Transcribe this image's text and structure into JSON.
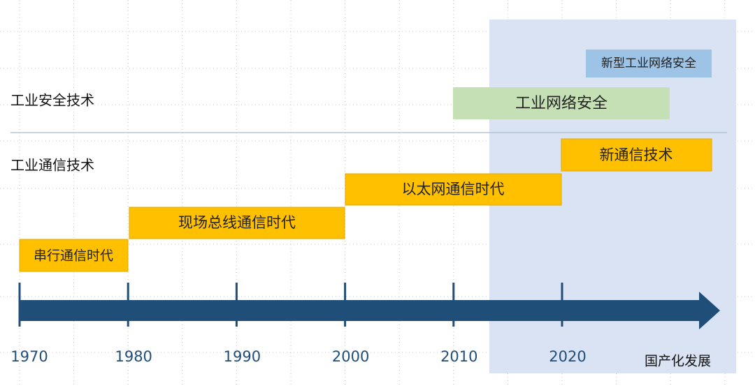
{
  "row_labels": [
    "工业安全技术",
    "工业通信技术"
  ],
  "timeline": {
    "years": [
      "1970",
      "1980",
      "1990",
      "2000",
      "2010",
      "2020"
    ],
    "label": "国产化发展"
  },
  "bars": [
    {
      "label": "新型工业网络安全"
    },
    {
      "label": "工业网络安全"
    },
    {
      "label": "新通信技术"
    },
    {
      "label": "以太网通信时代"
    },
    {
      "label": "现场总线通信时代"
    },
    {
      "label": "串行通信时代"
    }
  ]
}
